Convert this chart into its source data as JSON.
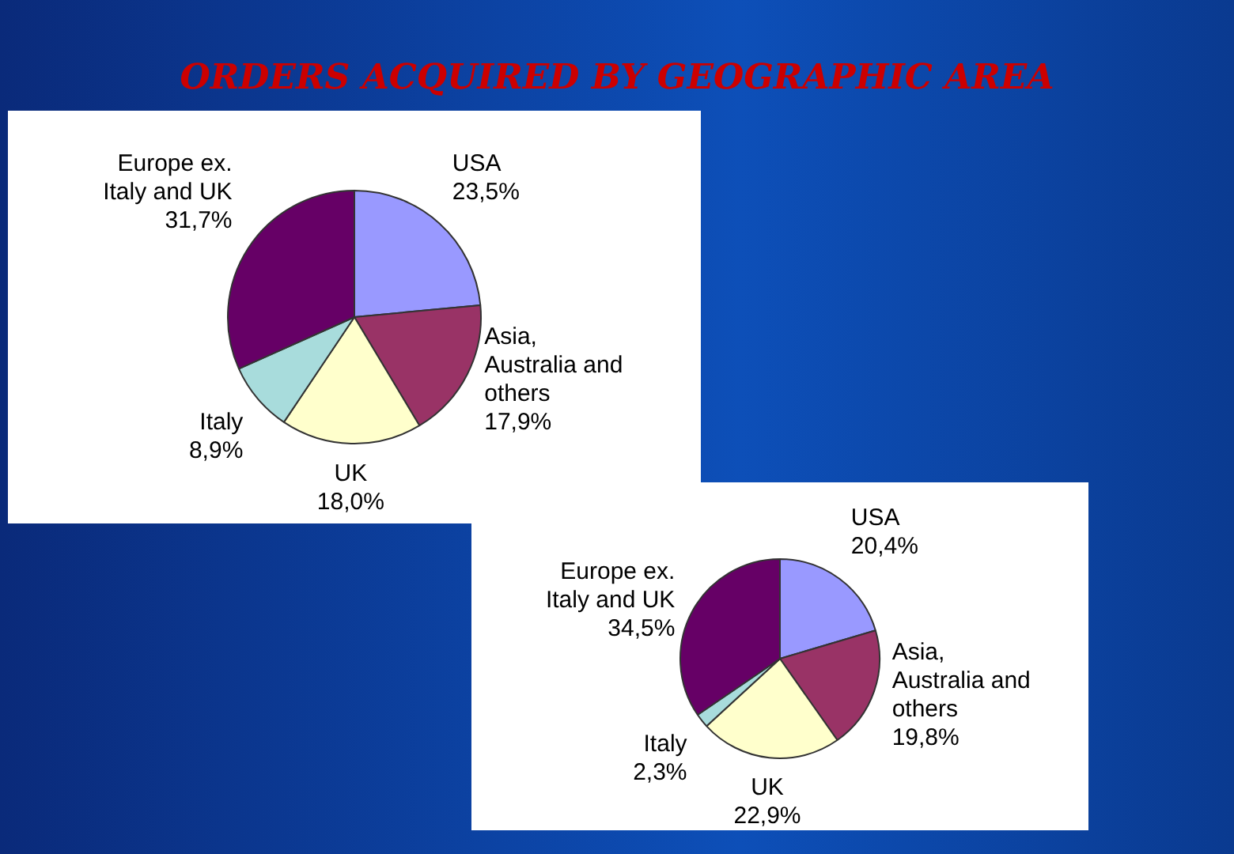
{
  "chart_data": [
    {
      "type": "pie",
      "title": "ORDERS ACQUIRED BY GEOGRAPHIC AREA",
      "categories": [
        "USA",
        "Asia, Australia and others",
        "UK",
        "Italy",
        "Europe ex. Italy and UK"
      ],
      "values": [
        23.5,
        17.9,
        18.0,
        8.9,
        31.7
      ],
      "value_labels": [
        "23,5%",
        "17,9%",
        "18,0%",
        "8,9%",
        "31,7%"
      ],
      "colors": [
        "#9999ff",
        "#993366",
        "#ffffcc",
        "#a8dcdc",
        "#660066"
      ]
    },
    {
      "type": "pie",
      "categories": [
        "USA",
        "Asia, Australia and others",
        "UK",
        "Italy",
        "Europe ex. Italy and UK"
      ],
      "values": [
        20.4,
        19.8,
        22.9,
        2.3,
        34.5
      ],
      "value_labels": [
        "20,4%",
        "19,8%",
        "22,9%",
        "2,3%",
        "34,5%"
      ],
      "colors": [
        "#9999ff",
        "#993366",
        "#ffffcc",
        "#a8dcdc",
        "#660066"
      ]
    }
  ]
}
